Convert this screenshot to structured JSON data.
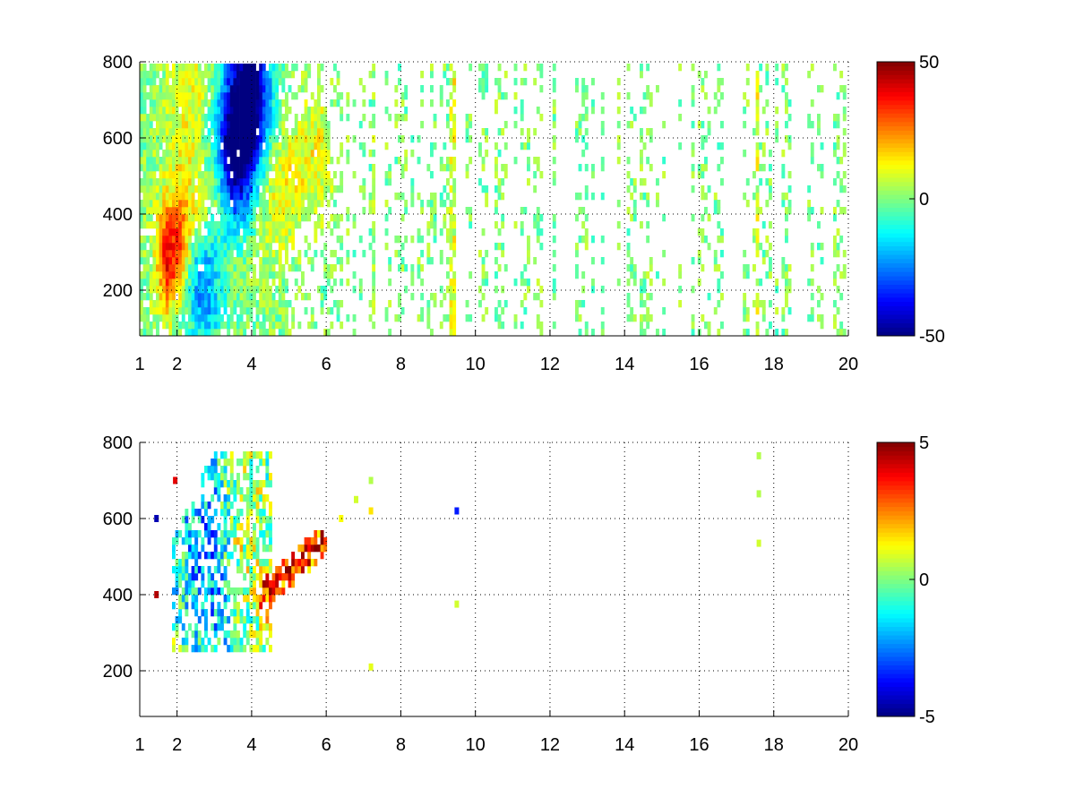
{
  "chart_data": [
    {
      "type": "heatmap",
      "title": "",
      "xlabel": "",
      "ylabel": "",
      "xlim": [
        1,
        20
      ],
      "ylim": [
        80,
        800
      ],
      "x_ticks": [
        "1",
        "2",
        "4",
        "6",
        "8",
        "10",
        "12",
        "14",
        "16",
        "18",
        "20"
      ],
      "x_tick_values": [
        1,
        2,
        4,
        6,
        8,
        10,
        12,
        14,
        16,
        18,
        20
      ],
      "y_ticks": [
        "200",
        "400",
        "600",
        "800"
      ],
      "y_tick_values": [
        200,
        400,
        600,
        800
      ],
      "grid": true,
      "colormap": "jet",
      "colorbar": {
        "min": -50,
        "max": 50,
        "labels": [
          "50",
          "0",
          "-50"
        ],
        "label_values": [
          50,
          0,
          -50
        ]
      },
      "features": [
        {
          "kind": "ridge",
          "x0": 1.8,
          "y0": 290,
          "x1": 3.0,
          "y1": 440,
          "value": 40,
          "spread": 0.25
        },
        {
          "kind": "ridge",
          "x0": 2.6,
          "y0": 330,
          "x1": 4.0,
          "y1": 720,
          "value": -45,
          "spread": 0.35
        },
        {
          "kind": "ridge",
          "x0": 3.6,
          "y0": 350,
          "x1": 5.8,
          "y1": 560,
          "value": 12,
          "spread": 0.3
        },
        {
          "kind": "blob",
          "x": 2.4,
          "y": 600,
          "value": 15,
          "rx": 0.5,
          "ry": 180
        },
        {
          "kind": "blob",
          "x": 3.8,
          "y": 600,
          "value": -30,
          "rx": 0.35,
          "ry": 200
        },
        {
          "kind": "blob",
          "x": 3.0,
          "y": 140,
          "value": -8,
          "rx": 0.3,
          "ry": 40
        }
      ],
      "noise_amplitude": 8,
      "noise_density": {
        "low_x": 0.85,
        "high_x": 0.3
      },
      "bright_columns": [
        {
          "x": 9.4,
          "value": 10
        },
        {
          "x": 17.6,
          "value": 10
        },
        {
          "x": 7.3,
          "value": 3
        }
      ]
    },
    {
      "type": "heatmap",
      "title": "",
      "xlabel": "",
      "ylabel": "",
      "xlim": [
        1,
        20
      ],
      "ylim": [
        80,
        800
      ],
      "x_ticks": [
        "1",
        "2",
        "4",
        "6",
        "8",
        "10",
        "12",
        "14",
        "16",
        "18",
        "20"
      ],
      "x_tick_values": [
        1,
        2,
        4,
        6,
        8,
        10,
        12,
        14,
        16,
        18,
        20
      ],
      "y_ticks": [
        "200",
        "400",
        "600",
        "800"
      ],
      "y_tick_values": [
        200,
        400,
        600,
        800
      ],
      "grid": true,
      "colormap": "jet",
      "colorbar": {
        "min": -5,
        "max": 5,
        "labels": [
          "5",
          "0",
          "-5"
        ],
        "label_values": [
          5,
          0,
          -5
        ]
      },
      "features": [
        {
          "kind": "ridge",
          "x0": 4.3,
          "y0": 400,
          "x1": 5.9,
          "y1": 540,
          "value": 3.5,
          "spread": 0.12
        },
        {
          "kind": "blob",
          "x": 3.0,
          "y": 500,
          "value": -2.5,
          "rx": 0.7,
          "ry": 220
        },
        {
          "kind": "blob",
          "x": 3.7,
          "y": 550,
          "value": 2.0,
          "rx": 0.4,
          "ry": 150
        }
      ],
      "region": {
        "x_min": 1.9,
        "x_max": 4.6,
        "y_min": 260,
        "y_max": 790
      },
      "isolated_points": [
        {
          "x": 7.2,
          "y": 700,
          "value": 0.5
        },
        {
          "x": 7.2,
          "y": 620,
          "value": 1.5
        },
        {
          "x": 7.2,
          "y": 210,
          "value": 1.0
        },
        {
          "x": 9.5,
          "y": 620,
          "value": -3.5
        },
        {
          "x": 9.5,
          "y": 375,
          "value": 0.8
        },
        {
          "x": 17.6,
          "y": 765,
          "value": 0.5
        },
        {
          "x": 17.6,
          "y": 665,
          "value": 0.5
        },
        {
          "x": 17.6,
          "y": 535,
          "value": 0.8
        },
        {
          "x": 6.4,
          "y": 600,
          "value": 1.2
        },
        {
          "x": 6.8,
          "y": 650,
          "value": 0.8
        },
        {
          "x": 1.45,
          "y": 600,
          "value": -4.5
        },
        {
          "x": 1.45,
          "y": 400,
          "value": 4.5
        },
        {
          "x": 1.95,
          "y": 700,
          "value": 4.0
        }
      ]
    }
  ]
}
